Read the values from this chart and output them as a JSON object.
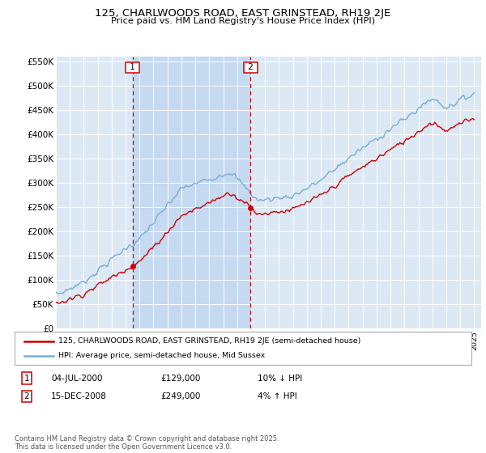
{
  "title": "125, CHARLWOODS ROAD, EAST GRINSTEAD, RH19 2JE",
  "subtitle": "Price paid vs. HM Land Registry's House Price Index (HPI)",
  "ylim": [
    0,
    560000
  ],
  "yticks": [
    0,
    50000,
    100000,
    150000,
    200000,
    250000,
    300000,
    350000,
    400000,
    450000,
    500000,
    550000
  ],
  "ytick_labels": [
    "£0",
    "£50K",
    "£100K",
    "£150K",
    "£200K",
    "£250K",
    "£300K",
    "£350K",
    "£400K",
    "£450K",
    "£500K",
    "£550K"
  ],
  "bg_color": "#dce9f5",
  "shade_color": "#c5d9f0",
  "grid_color": "#ffffff",
  "red_color": "#cc0000",
  "blue_color": "#7aadd4",
  "marker1_x": 2000.5,
  "marker2_x": 2008.96,
  "transaction1": {
    "date": "04-JUL-2000",
    "price": "£129,000",
    "hpi_change": "10% ↓ HPI"
  },
  "transaction2": {
    "date": "15-DEC-2008",
    "price": "£249,000",
    "hpi_change": "4% ↑ HPI"
  },
  "legend_line1": "125, CHARLWOODS ROAD, EAST GRINSTEAD, RH19 2JE (semi-detached house)",
  "legend_line2": "HPI: Average price, semi-detached house, Mid Sussex",
  "footer": "Contains HM Land Registry data © Crown copyright and database right 2025.\nThis data is licensed under the Open Government Licence v3.0."
}
